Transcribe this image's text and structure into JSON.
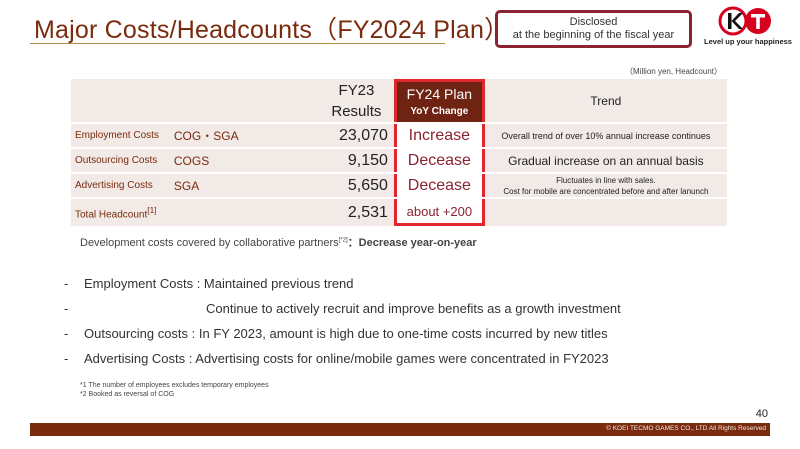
{
  "header": {
    "title": "Major Costs/Headcounts（FY2024 Plan）",
    "disclosed_line1": "Disclosed",
    "disclosed_line2": "at the beginning of the fiscal year",
    "logo_tagline": "Level up your happiness",
    "logo_text": "KT"
  },
  "table": {
    "unit_note": "（Million yen, Headcount）",
    "headers": {
      "fy23_line1": "FY23",
      "fy23_line2": "Results",
      "fy24_line1": "FY24 Plan",
      "fy24_line2": "YoY Change",
      "trend": "Trend"
    },
    "rows": [
      {
        "label": "Employment Costs",
        "category": "COG・SGA",
        "fy23": "23,070",
        "fy24": "Increase",
        "trend_lines": [
          "Overall trend of over 10% annual increase continues"
        ]
      },
      {
        "label": "Outsourcing Costs",
        "category": "COGS",
        "fy23": "9,150",
        "fy24": "Decease",
        "trend_lines": [
          "Gradual increase on an annual basis"
        ]
      },
      {
        "label": "Advertising Costs",
        "category": "SGA",
        "fy23": "5,650",
        "fy24": "Decease",
        "trend_lines": [
          "Fluctuates in line with sales.",
          "Cost for mobile are concentrated before and after lanunch"
        ]
      }
    ],
    "total": {
      "label": "Total Headcount",
      "label_sup": "[1]",
      "fy23": "2,531",
      "fy24": "about +200"
    }
  },
  "dev_note": {
    "text": "Development costs covered by collaborative partners",
    "sup": "[*2]",
    "suffix": "：Decrease year-on-year"
  },
  "bullets": [
    {
      "dash": "-",
      "text": "Employment Costs : Maintained previous trend"
    },
    {
      "dash": "-",
      "text": "Continue to actively recruit and improve benefits as a growth investment",
      "indent": true
    },
    {
      "dash": "-",
      "text": "Outsourcing costs : In FY 2023, amount is high due to one-time costs incurred by new titles"
    },
    {
      "dash": "-",
      "text": "Advertising Costs  : Advertising costs for online/mobile games were concentrated in FY2023"
    }
  ],
  "footnotes": [
    "*1 The number of employees excludes temporary employees",
    "*2 Booked as reversal of COG"
  ],
  "footer": {
    "page_number": "40",
    "copyright": "© KOEI TECMO GAMES CO., LTD All Rights Reserved"
  },
  "colors": {
    "brand_brown": "#7a2b0e",
    "highlight_red": "#e1262d",
    "value_red": "#8b2332",
    "row_bg": "#f1eae6"
  }
}
